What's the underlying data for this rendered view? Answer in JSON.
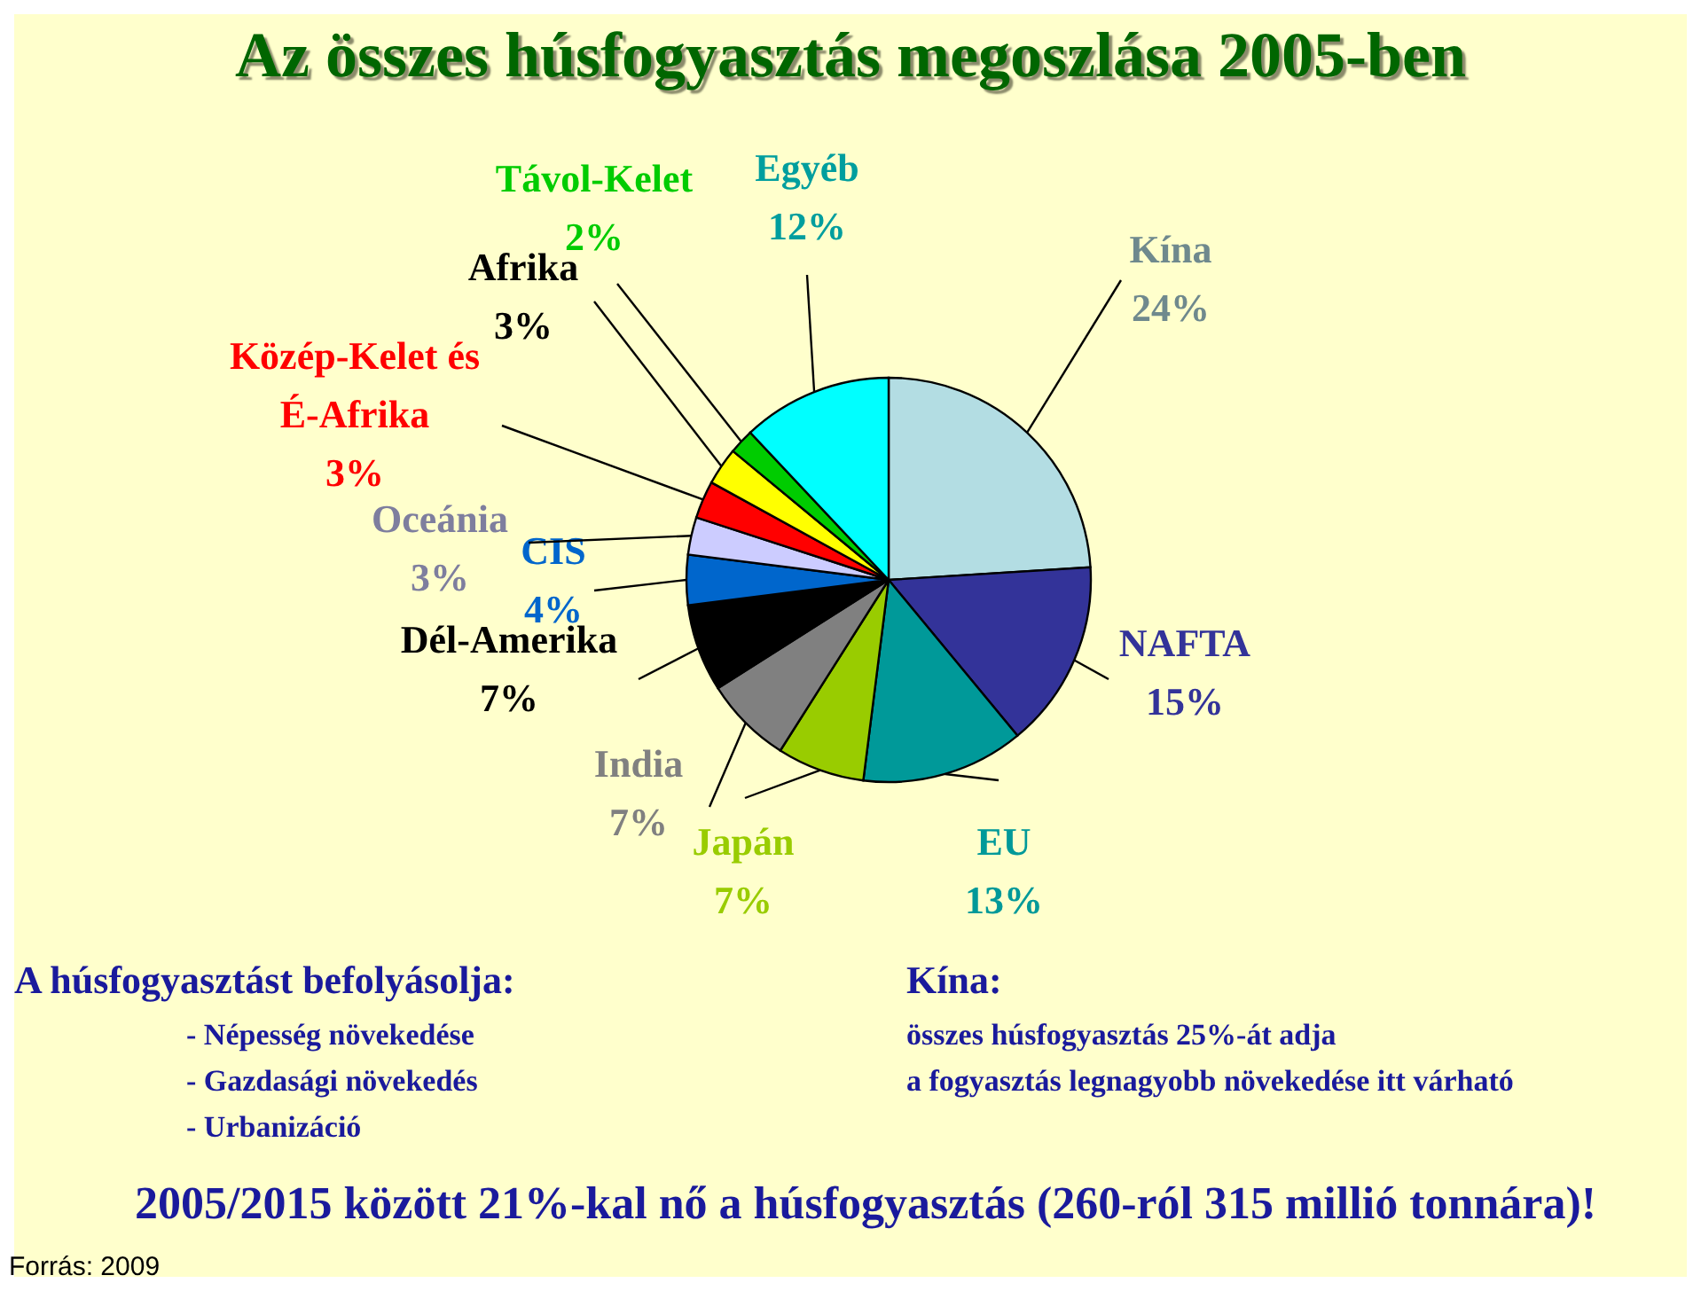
{
  "chart_data": {
    "type": "pie",
    "title": "Az összes húsfogyasztás megoszlása 2005-ben",
    "categories": [
      "Kína",
      "NAFTA",
      "EU",
      "Japán",
      "India",
      "Dél-Amerika",
      "CIS",
      "Oceánia",
      "Közép-Kelet és É-Afrika",
      "Afrika",
      "Távol-Kelet",
      "Egyéb"
    ],
    "values": [
      24,
      15,
      13,
      7,
      7,
      7,
      4,
      3,
      3,
      3,
      2,
      12
    ],
    "value_labels": [
      "24%",
      "15%",
      "13%",
      "7%",
      "7%",
      "7%",
      "4%",
      "3%",
      "3%",
      "3%",
      "2%",
      "12%"
    ],
    "colors": [
      "#b3dde3",
      "#333399",
      "#009999",
      "#99cc00",
      "#808080",
      "#000000",
      "#0066cc",
      "#ccccff",
      "#ff0000",
      "#ffff00",
      "#00cc00",
      "#00ffff"
    ],
    "legend": false,
    "annotations": [
      "A húsfogyasztást befolyásolja:",
      "- Népesség növekedése",
      "- Gazdasági növekedés",
      "- Urbanizáció",
      "Kína:",
      "összes húsfogyasztás 25%-át adja",
      "a fogyasztás legnagyobb növekedése itt várható",
      "2005/2015 között 21%-kal nő a húsfogyasztás (260-ról 315 millió tonnára)!",
      "Forrás: 2009"
    ]
  }
}
